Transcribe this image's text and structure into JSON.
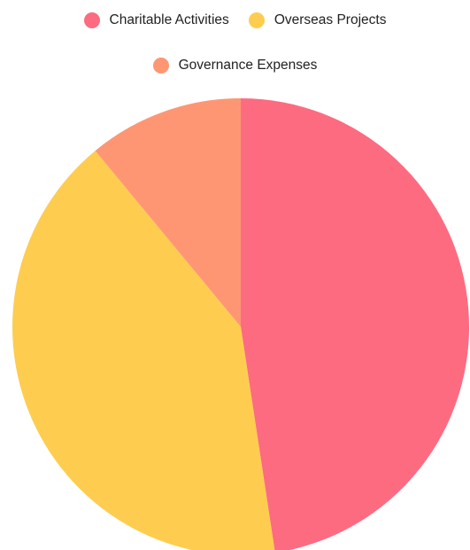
{
  "chart_data": {
    "type": "pie",
    "title": "",
    "labels": [
      "Charitable Activities",
      "Overseas Projects",
      "Governance Expenses"
    ],
    "values": [
      47.6,
      41.4,
      11.0
    ],
    "colors": [
      "#fd6b80",
      "#fecd4f",
      "#fe9674"
    ],
    "legend_position": "top",
    "start_angle_deg": 0,
    "direction": "clockwise"
  },
  "legend": {
    "items": [
      {
        "label": "Charitable Activities",
        "color": "#fd6b80"
      },
      {
        "label": "Overseas Projects",
        "color": "#fecd4f"
      },
      {
        "label": "Governance Expenses",
        "color": "#fe9674"
      }
    ]
  }
}
